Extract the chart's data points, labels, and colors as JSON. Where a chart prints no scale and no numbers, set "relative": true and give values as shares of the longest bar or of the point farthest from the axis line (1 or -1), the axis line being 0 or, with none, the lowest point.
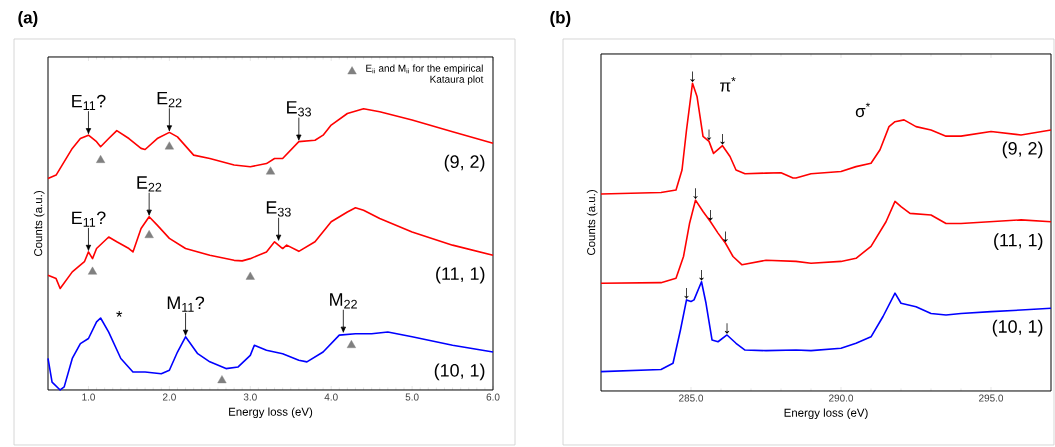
{
  "chart_data": [
    {
      "type": "line",
      "title": "(a)",
      "xlabel": "Energy loss (eV)",
      "ylabel": "Counts (a.u.)",
      "relative": true,
      "xlim": [
        0.5,
        6.0
      ],
      "xticks": [
        {
          "value": 1,
          "label": "1.0"
        },
        {
          "value": 2,
          "label": "2.0"
        },
        {
          "value": 3,
          "label": "3.0"
        },
        {
          "value": 4,
          "label": "4.0"
        },
        {
          "value": 5,
          "label": "5.0"
        },
        {
          "value": 6,
          "label": "6.0"
        }
      ],
      "legend": "top right",
      "series": [
        {
          "name": "(9, 2)",
          "color": "#ff0000",
          "x": [
            0.5,
            0.6,
            0.8,
            0.9,
            1.0,
            1.1,
            1.15,
            1.25,
            1.35,
            1.5,
            1.65,
            1.7,
            1.85,
            2.0,
            2.1,
            2.3,
            2.5,
            2.8,
            3.0,
            3.2,
            3.3,
            3.4,
            3.6,
            3.8,
            3.9,
            4.0,
            4.2,
            4.4,
            4.6,
            5.0,
            5.5,
            6.0
          ],
          "values": [
            0.752,
            0.764,
            0.859,
            0.894,
            0.906,
            0.883,
            0.865,
            0.894,
            0.922,
            0.894,
            0.859,
            0.855,
            0.894,
            0.916,
            0.9,
            0.835,
            0.823,
            0.8,
            0.794,
            0.805,
            0.823,
            0.823,
            0.883,
            0.888,
            0.906,
            0.942,
            0.983,
            1.0,
            0.989,
            0.96,
            0.918,
            0.877
          ]
        },
        {
          "name": "(11, 1)",
          "color": "#ff0000",
          "x": [
            0.5,
            0.6,
            0.65,
            0.8,
            0.95,
            1.0,
            1.05,
            1.1,
            1.25,
            1.35,
            1.5,
            1.55,
            1.65,
            1.75,
            1.85,
            2.0,
            2.2,
            2.5,
            2.8,
            2.9,
            3.0,
            3.2,
            3.3,
            3.4,
            3.45,
            3.6,
            3.8,
            4.0,
            4.2,
            4.3,
            4.4,
            4.6,
            5.0,
            5.5,
            6.0
          ],
          "values": [
            0.408,
            0.396,
            0.361,
            0.42,
            0.456,
            0.491,
            0.467,
            0.503,
            0.544,
            0.527,
            0.503,
            0.491,
            0.574,
            0.616,
            0.586,
            0.539,
            0.503,
            0.479,
            0.461,
            0.459,
            0.467,
            0.491,
            0.527,
            0.503,
            0.515,
            0.493,
            0.527,
            0.598,
            0.633,
            0.648,
            0.639,
            0.61,
            0.562,
            0.515,
            0.479
          ]
        },
        {
          "name": "(10, 1)",
          "color": "#0000ff",
          "x": [
            0.5,
            0.55,
            0.65,
            0.7,
            0.8,
            0.9,
            1.0,
            1.1,
            1.15,
            1.25,
            1.4,
            1.55,
            1.7,
            1.9,
            2.0,
            2.1,
            2.2,
            2.35,
            2.5,
            2.7,
            2.85,
            3.0,
            3.05,
            3.2,
            3.4,
            3.6,
            3.7,
            3.9,
            4.1,
            4.3,
            4.5,
            4.7,
            5.0,
            5.5,
            6.0
          ],
          "values": [
            0.112,
            0.028,
            0.0,
            0.011,
            0.112,
            0.165,
            0.183,
            0.242,
            0.256,
            0.206,
            0.112,
            0.064,
            0.064,
            0.058,
            0.07,
            0.135,
            0.189,
            0.129,
            0.1,
            0.076,
            0.082,
            0.123,
            0.159,
            0.141,
            0.129,
            0.106,
            0.1,
            0.135,
            0.195,
            0.2,
            0.2,
            0.206,
            0.189,
            0.159,
            0.135
          ]
        },
        {
          "name": "E$_{ii}$ and M$_{ii}$ for the empirical Kataura plot",
          "type": "scatter",
          "marker": "triangle",
          "color": "#808080",
          "x": [
            1.15,
            2.0,
            3.25,
            1.05,
            1.75,
            3.0,
            2.65,
            4.25
          ],
          "values": [
            0.817,
            0.865,
            0.776,
            0.42,
            0.55,
            0.402,
            0.034,
            0.159
          ]
        }
      ],
      "annotations": [
        {
          "text": "E$_{11}$?",
          "x": 1.0,
          "y": 0.906
        },
        {
          "text": "E$_{22}$",
          "x": 2.0,
          "y": 0.916
        },
        {
          "text": "E$_{33}$",
          "x": 3.6,
          "y": 0.883
        },
        {
          "text": "E$_{11}$?",
          "x": 1.0,
          "y": 0.491
        },
        {
          "text": "E$_{22}$",
          "x": 1.75,
          "y": 0.616
        },
        {
          "text": "E$_{33}$",
          "x": 3.35,
          "y": 0.527
        },
        {
          "text": "M$_{11}$?",
          "x": 2.2,
          "y": 0.189
        },
        {
          "text": "M$_{22}$",
          "x": 4.15,
          "y": 0.2
        },
        "*"
      ]
    },
    {
      "type": "line",
      "title": "(b)",
      "xlabel": "Energy loss (eV)",
      "ylabel": "Counts (a.u.)",
      "relative": true,
      "xlim": [
        282,
        297
      ],
      "xticks": [
        {
          "value": 285,
          "label": "285.0"
        },
        {
          "value": 290,
          "label": "290.0"
        },
        {
          "value": 295,
          "label": "295.0"
        }
      ],
      "series": [
        {
          "name": "(9, 2)",
          "color": "#ff0000",
          "x": [
            282,
            284,
            284.5,
            284.7,
            284.85,
            285.05,
            285.2,
            285.4,
            285.6,
            285.75,
            286.05,
            286.3,
            286.5,
            286.8,
            287.5,
            288,
            288.4,
            288.5,
            289,
            290,
            290.5,
            291,
            291.3,
            291.6,
            291.8,
            292.1,
            292.5,
            293,
            293.5,
            294,
            295,
            296,
            297
          ],
          "values": [
            0.64,
            0.645,
            0.653,
            0.718,
            0.848,
            1.0,
            0.957,
            0.827,
            0.811,
            0.772,
            0.797,
            0.762,
            0.718,
            0.706,
            0.708,
            0.709,
            0.692,
            0.692,
            0.706,
            0.713,
            0.729,
            0.74,
            0.784,
            0.859,
            0.875,
            0.881,
            0.859,
            0.848,
            0.828,
            0.828,
            0.843,
            0.832,
            0.848
          ]
        },
        {
          "name": "(11, 1)",
          "color": "#ff0000",
          "x": [
            282,
            284,
            284.5,
            284.75,
            284.95,
            285.15,
            285.4,
            285.65,
            285.9,
            286.15,
            286.4,
            286.7,
            287.5,
            288.5,
            289,
            290,
            290.5,
            291,
            291.5,
            291.8,
            292,
            292.3,
            293,
            293.5,
            294,
            295,
            296,
            297
          ],
          "values": [
            0.35,
            0.352,
            0.366,
            0.437,
            0.544,
            0.62,
            0.583,
            0.55,
            0.513,
            0.48,
            0.437,
            0.41,
            0.425,
            0.421,
            0.415,
            0.421,
            0.431,
            0.47,
            0.55,
            0.616,
            0.599,
            0.577,
            0.572,
            0.544,
            0.544,
            0.55,
            0.556,
            0.55
          ]
        },
        {
          "name": "(10, 1)",
          "color": "#0000ff",
          "x": [
            282,
            284,
            284.4,
            284.65,
            284.85,
            285.0,
            285.1,
            285.35,
            285.5,
            285.7,
            285.9,
            286.2,
            286.5,
            286.8,
            287.5,
            288.5,
            289,
            290,
            290.5,
            291,
            291.4,
            291.8,
            292,
            292.5,
            293,
            293.5,
            294,
            295,
            296,
            297
          ],
          "values": [
            0.063,
            0.07,
            0.09,
            0.199,
            0.296,
            0.291,
            0.296,
            0.355,
            0.285,
            0.166,
            0.16,
            0.182,
            0.155,
            0.133,
            0.131,
            0.133,
            0.131,
            0.139,
            0.155,
            0.176,
            0.242,
            0.318,
            0.285,
            0.274,
            0.252,
            0.247,
            0.252,
            0.258,
            0.263,
            0.269
          ]
        }
      ],
      "annotations": [
        {
          "text": "↓",
          "x": 285.05,
          "y": 1.0
        },
        {
          "text": "↓",
          "x": 285.6,
          "y": 0.811
        },
        {
          "text": "↓",
          "x": 286.05,
          "y": 0.797
        },
        {
          "text": "↓",
          "x": 285.15,
          "y": 0.62
        },
        {
          "text": "↓",
          "x": 285.65,
          "y": 0.55
        },
        {
          "text": "↓",
          "x": 286.15,
          "y": 0.48
        },
        {
          "text": "↓",
          "x": 284.85,
          "y": 0.296
        },
        {
          "text": "↓",
          "x": 285.35,
          "y": 0.355
        },
        {
          "text": "↓",
          "x": 286.2,
          "y": 0.182
        },
        "π$^{*}$",
        "σ$^{*}$"
      ]
    }
  ]
}
